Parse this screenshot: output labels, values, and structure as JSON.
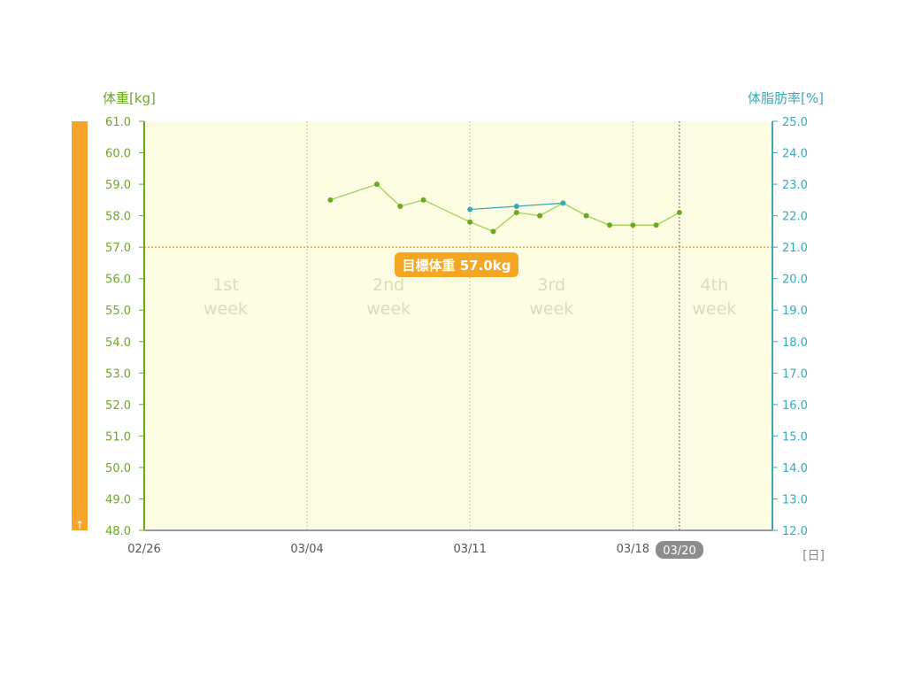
{
  "colors": {
    "weight": "#6aaa1f",
    "weight_line": "#9fd257",
    "bodyfat": "#3aa9b8",
    "plot_bg": "#fdfde4",
    "goal": "#f5a623",
    "orange_bar": "#f5a62a",
    "badge": "#8c8c8c"
  },
  "side_bar": {
    "icon": "up-arrow-icon",
    "glyph": "↑"
  },
  "chart_data": {
    "type": "line",
    "y_left_label": "体重[kg]",
    "y_right_label": "体脂肪率[%]",
    "x_unit_label": "[日]",
    "y_left_range": [
      48,
      61
    ],
    "y_right_range": [
      12,
      25
    ],
    "y_left_ticks": [
      "61.0",
      "60.0",
      "59.0",
      "58.0",
      "57.0",
      "56.0",
      "55.0",
      "54.0",
      "53.0",
      "52.0",
      "51.0",
      "50.0",
      "49.0",
      "48.0"
    ],
    "y_right_ticks": [
      "25.0",
      "24.0",
      "23.0",
      "22.0",
      "21.0",
      "20.0",
      "19.0",
      "18.0",
      "17.0",
      "16.0",
      "15.0",
      "14.0",
      "13.0",
      "12.0"
    ],
    "x_range": [
      "02/26",
      "03/24"
    ],
    "x_ticks": [
      "02/26",
      "03/04",
      "03/11",
      "03/18"
    ],
    "current_date": "03/20",
    "week_labels": [
      {
        "line1": "1st",
        "line2": "week"
      },
      {
        "line1": "2nd",
        "line2": "week"
      },
      {
        "line1": "3rd",
        "line2": "week"
      },
      {
        "line1": "4th",
        "line2": "week"
      }
    ],
    "goal": {
      "value": 57.0,
      "label": "目標体重 57.0kg"
    },
    "grid": "vertical dotted at weekly ticks",
    "series": [
      {
        "axis": "left",
        "points": [
          {
            "x": "03/05",
            "y": 58.5
          },
          {
            "x": "03/07",
            "y": 59.0
          },
          {
            "x": "03/08",
            "y": 58.3
          },
          {
            "x": "03/09",
            "y": 58.5
          },
          {
            "x": "03/11",
            "y": 57.8
          },
          {
            "x": "03/12",
            "y": 57.5
          },
          {
            "x": "03/13",
            "y": 58.1
          },
          {
            "x": "03/14",
            "y": 58.0
          },
          {
            "x": "03/15",
            "y": 58.4
          },
          {
            "x": "03/16",
            "y": 58.0
          },
          {
            "x": "03/17",
            "y": 57.7
          },
          {
            "x": "03/18",
            "y": 57.7
          },
          {
            "x": "03/19",
            "y": 57.7
          },
          {
            "x": "03/20",
            "y": 58.1
          }
        ]
      },
      {
        "axis": "right",
        "points": [
          {
            "x": "03/11",
            "y": 22.2
          },
          {
            "x": "03/13",
            "y": 22.3
          },
          {
            "x": "03/15",
            "y": 22.4
          }
        ]
      }
    ]
  }
}
